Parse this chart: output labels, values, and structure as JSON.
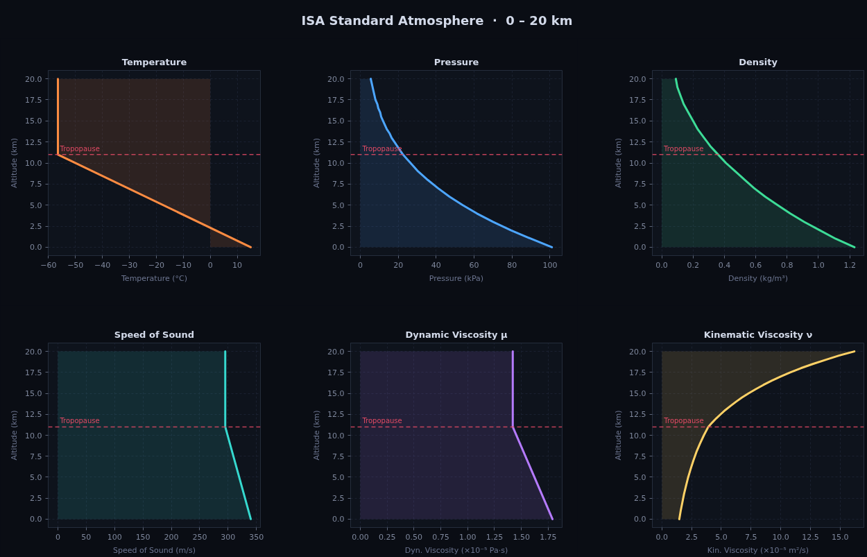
{
  "chart_data": [
    {
      "type": "other",
      "title": "ISA Standard Atmosphere  ·  0 – 20 km"
    },
    {
      "type": "area",
      "orientation": "horizontal",
      "title": "Temperature",
      "xlabel": "Temperature (°C)",
      "ylabel": "Altitude (km)",
      "color": "#ff8c42",
      "x": [
        0,
        11,
        20
      ],
      "values": [
        15,
        -56.5,
        -56.5
      ],
      "xlim": [
        -60.1,
        18.6
      ],
      "xticks": [
        {
          "value": -60,
          "label": "−60"
        },
        {
          "value": -50,
          "label": "−50"
        },
        {
          "value": -40,
          "label": "−40"
        },
        {
          "value": -30,
          "label": "−30"
        },
        {
          "value": -20,
          "label": "−20"
        },
        {
          "value": -10,
          "label": "−10"
        },
        0,
        10
      ],
      "ylim": [
        -1,
        21
      ],
      "yticks": [
        {
          "value": 0,
          "label": "0.0"
        },
        2.5,
        {
          "value": 5,
          "label": "5.0"
        },
        7.5,
        {
          "value": 10,
          "label": "10.0"
        },
        12.5,
        {
          "value": 15,
          "label": "15.0"
        },
        17.5,
        {
          "value": 20,
          "label": "20.0"
        }
      ],
      "grid": true,
      "ref_lines": [
        {
          "axis": "y",
          "value": 11,
          "label": "Tropopause",
          "color": "#e04a64",
          "line_style": "dashed"
        }
      ]
    },
    {
      "type": "area",
      "orientation": "horizontal",
      "title": "Pressure",
      "xlabel": "Pressure (kPa)",
      "ylabel": "Altitude (km)",
      "color": "#4da6ff",
      "x": [
        0,
        1,
        2,
        3,
        4,
        5,
        6,
        7,
        8,
        9,
        10,
        10.5,
        11,
        11.5,
        12,
        12.5,
        13,
        13.5,
        14,
        14.5,
        15,
        15.5,
        16,
        16.5,
        17,
        17.5,
        18,
        18.5,
        19,
        19.5,
        20
      ],
      "values": [
        101,
        90,
        79.5,
        70,
        61.5,
        54,
        47,
        41,
        35.5,
        30.5,
        26.5,
        24.5,
        22.5,
        21,
        19.5,
        18,
        16.5,
        15.5,
        14,
        13,
        12,
        11,
        10.5,
        9.5,
        9,
        8,
        7.5,
        7,
        6.5,
        6,
        5.5
      ],
      "xlim": [
        -5.1,
        106.4
      ],
      "xticks": [
        0,
        20,
        40,
        60,
        80,
        100
      ],
      "ylim": [
        -1,
        21
      ],
      "yticks": [
        {
          "value": 0,
          "label": "0.0"
        },
        2.5,
        {
          "value": 5,
          "label": "5.0"
        },
        7.5,
        {
          "value": 10,
          "label": "10.0"
        },
        12.5,
        {
          "value": 15,
          "label": "15.0"
        },
        17.5,
        {
          "value": 20,
          "label": "20.0"
        }
      ],
      "grid": true,
      "ref_lines": [
        {
          "axis": "y",
          "value": 11,
          "label": "Tropopause",
          "color": "#e04a64",
          "line_style": "dashed"
        }
      ]
    },
    {
      "type": "area",
      "orientation": "horizontal",
      "title": "Density",
      "xlabel": "Density (kg/m³)",
      "ylabel": "Altitude (km)",
      "color": "#3ddc97",
      "x": [
        0,
        1,
        2,
        3,
        4,
        5,
        6,
        7,
        8,
        9,
        10,
        11,
        12,
        13,
        14,
        15,
        16,
        17,
        18,
        19,
        20
      ],
      "values": [
        1.23,
        1.11,
        1.01,
        0.91,
        0.82,
        0.74,
        0.66,
        0.59,
        0.53,
        0.47,
        0.41,
        0.36,
        0.31,
        0.27,
        0.23,
        0.2,
        0.17,
        0.14,
        0.12,
        0.1,
        0.09
      ],
      "xlim": [
        -0.06,
        1.29
      ],
      "xticks": [
        {
          "value": 0,
          "label": "0.0"
        },
        0.2,
        0.4,
        0.6,
        0.8,
        {
          "value": 1,
          "label": "1.0"
        },
        1.2
      ],
      "ylim": [
        -1,
        21
      ],
      "yticks": [
        {
          "value": 0,
          "label": "0.0"
        },
        2.5,
        {
          "value": 5,
          "label": "5.0"
        },
        7.5,
        {
          "value": 10,
          "label": "10.0"
        },
        12.5,
        {
          "value": 15,
          "label": "15.0"
        },
        17.5,
        {
          "value": 20,
          "label": "20.0"
        }
      ],
      "grid": true,
      "ref_lines": [
        {
          "axis": "y",
          "value": 11,
          "label": "Tropopause",
          "color": "#e04a64",
          "line_style": "dashed"
        }
      ]
    },
    {
      "type": "area",
      "orientation": "horizontal",
      "title": "Speed of Sound",
      "xlabel": "Speed of Sound (m/s)",
      "ylabel": "Altitude (km)",
      "color": "#36d9cf",
      "x": [
        0,
        11,
        20
      ],
      "values": [
        340,
        295,
        295
      ],
      "xlim": [
        -17,
        357
      ],
      "xticks": [
        0,
        50,
        100,
        150,
        200,
        250,
        300,
        350
      ],
      "ylim": [
        -1,
        21
      ],
      "yticks": [
        {
          "value": 0,
          "label": "0.0"
        },
        2.5,
        {
          "value": 5,
          "label": "5.0"
        },
        7.5,
        {
          "value": 10,
          "label": "10.0"
        },
        12.5,
        {
          "value": 15,
          "label": "15.0"
        },
        17.5,
        {
          "value": 20,
          "label": "20.0"
        }
      ],
      "grid": true,
      "ref_lines": [
        {
          "axis": "y",
          "value": 11,
          "label": "Tropopause",
          "color": "#e04a64",
          "line_style": "dashed"
        }
      ]
    },
    {
      "type": "area",
      "orientation": "horizontal",
      "title": "Dynamic Viscosity μ",
      "xlabel": "Dyn. Viscosity (×10⁻⁵ Pa·s)",
      "ylabel": "Altitude (km)",
      "color": "#b57bff",
      "x": [
        0,
        11,
        20
      ],
      "values": [
        1.79,
        1.42,
        1.42
      ],
      "xlim": [
        -0.09,
        1.88
      ],
      "xticks": [
        {
          "value": 0,
          "label": "0.00"
        },
        0.25,
        {
          "value": 0.5,
          "label": "0.50"
        },
        0.75,
        {
          "value": 1,
          "label": "1.00"
        },
        1.25,
        {
          "value": 1.5,
          "label": "1.50"
        },
        1.75
      ],
      "ylim": [
        -1,
        21
      ],
      "yticks": [
        {
          "value": 0,
          "label": "0.0"
        },
        2.5,
        {
          "value": 5,
          "label": "5.0"
        },
        7.5,
        {
          "value": 10,
          "label": "10.0"
        },
        12.5,
        {
          "value": 15,
          "label": "15.0"
        },
        17.5,
        {
          "value": 20,
          "label": "20.0"
        }
      ],
      "grid": true,
      "ref_lines": [
        {
          "axis": "y",
          "value": 11,
          "label": "Tropopause",
          "color": "#e04a64",
          "line_style": "dashed"
        }
      ]
    },
    {
      "type": "area",
      "orientation": "horizontal",
      "title": "Kinematic Viscosity ν",
      "xlabel": "Kin. Viscosity (×10⁻⁵ m²/s)",
      "ylabel": "Altitude (km)",
      "color": "#ffd166",
      "x": [
        0,
        1,
        2,
        3,
        4,
        5,
        6,
        7,
        8,
        9,
        10,
        11,
        11.5,
        12,
        12.5,
        13,
        13.5,
        14,
        14.5,
        15,
        15.5,
        16,
        16.5,
        17,
        17.5,
        18,
        18.5,
        19,
        19.5,
        20
      ],
      "values": [
        1.46,
        1.58,
        1.72,
        1.86,
        2.03,
        2.21,
        2.42,
        2.65,
        2.9,
        3.2,
        3.53,
        3.9,
        4.22,
        4.56,
        4.94,
        5.33,
        5.78,
        6.24,
        6.74,
        7.3,
        7.9,
        8.54,
        9.23,
        9.99,
        10.8,
        11.7,
        12.7,
        13.8,
        14.9,
        16.2
      ],
      "xlim": [
        -0.81,
        17.0
      ],
      "xticks": [
        {
          "value": 0,
          "label": "0.0"
        },
        2.5,
        {
          "value": 5,
          "label": "5.0"
        },
        7.5,
        {
          "value": 10,
          "label": "10.0"
        },
        12.5,
        {
          "value": 15,
          "label": "15.0"
        }
      ],
      "ylim": [
        -1,
        21
      ],
      "yticks": [
        {
          "value": 0,
          "label": "0.0"
        },
        2.5,
        {
          "value": 5,
          "label": "5.0"
        },
        7.5,
        {
          "value": 10,
          "label": "10.0"
        },
        12.5,
        {
          "value": 15,
          "label": "15.0"
        },
        17.5,
        {
          "value": 20,
          "label": "20.0"
        }
      ],
      "grid": true,
      "ref_lines": [
        {
          "axis": "y",
          "value": 11,
          "label": "Tropopause",
          "color": "#e04a64",
          "line_style": "dashed"
        }
      ]
    }
  ]
}
